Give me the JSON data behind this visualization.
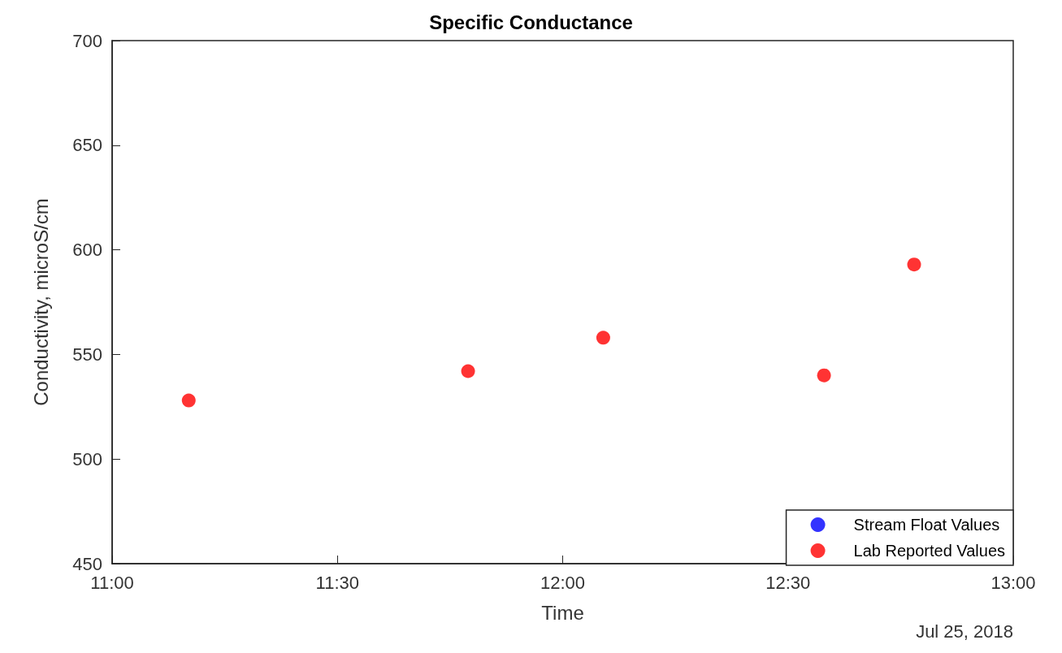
{
  "chart_data": {
    "type": "scatter",
    "title": "Specific Conductance",
    "xlabel": "Time",
    "ylabel": "Conductivity, microS/cm",
    "annotations": [
      "Jul 25, 2018"
    ],
    "xlim": [
      11,
      13
    ],
    "xticks": [
      {
        "value": 11,
        "label": "11:00"
      },
      {
        "value": 11.5,
        "label": "11:30"
      },
      {
        "value": 12,
        "label": "12:00"
      },
      {
        "value": 12.5,
        "label": "12:30"
      },
      {
        "value": 13,
        "label": "13:00"
      }
    ],
    "ylim": [
      450,
      700
    ],
    "yticks": [
      450,
      500,
      550,
      600,
      650,
      700
    ],
    "series": [
      {
        "name": "Stream Float Values",
        "color": "#0000ff"
      },
      {
        "name": "Lab Reported Values",
        "color": "#ff0000",
        "x": [
          11.17,
          11.79,
          12.09,
          12.58,
          12.78
        ],
        "values": [
          528,
          542,
          558,
          540,
          593
        ]
      }
    ],
    "marker": "circle",
    "grid": false,
    "legend": "bottom right"
  }
}
